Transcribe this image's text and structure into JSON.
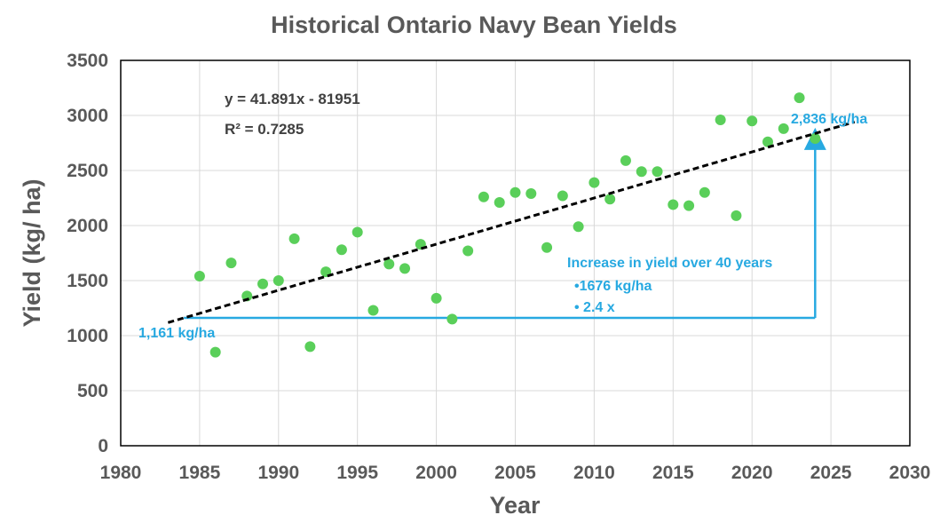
{
  "chart_data": {
    "type": "scatter",
    "title": "Historical Ontario Navy Bean Yields",
    "xlabel": "Year",
    "ylabel": "Yield (kg/ ha)",
    "xlim": [
      1980,
      2030
    ],
    "ylim": [
      0,
      3500
    ],
    "xticks": [
      "1980",
      "1985",
      "1990",
      "1995",
      "2000",
      "2005",
      "2010",
      "2015",
      "2020",
      "2025",
      "2030"
    ],
    "yticks": [
      "0",
      "500",
      "1000",
      "1500",
      "2000",
      "2500",
      "3000",
      "3500"
    ],
    "grid": true,
    "legend": "none",
    "series": [
      {
        "color": "#5ACF5A",
        "points": [
          {
            "x": 1985,
            "y": 1540
          },
          {
            "x": 1986,
            "y": 850
          },
          {
            "x": 1987,
            "y": 1660
          },
          {
            "x": 1988,
            "y": 1360
          },
          {
            "x": 1989,
            "y": 1470
          },
          {
            "x": 1990,
            "y": 1500
          },
          {
            "x": 1991,
            "y": 1880
          },
          {
            "x": 1992,
            "y": 900
          },
          {
            "x": 1993,
            "y": 1580
          },
          {
            "x": 1994,
            "y": 1780
          },
          {
            "x": 1995,
            "y": 1940
          },
          {
            "x": 1996,
            "y": 1230
          },
          {
            "x": 1997,
            "y": 1650
          },
          {
            "x": 1998,
            "y": 1610
          },
          {
            "x": 1999,
            "y": 1830
          },
          {
            "x": 2000,
            "y": 1340
          },
          {
            "x": 2001,
            "y": 1150
          },
          {
            "x": 2002,
            "y": 1770
          },
          {
            "x": 2003,
            "y": 2260
          },
          {
            "x": 2004,
            "y": 2210
          },
          {
            "x": 2005,
            "y": 2300
          },
          {
            "x": 2006,
            "y": 2290
          },
          {
            "x": 2007,
            "y": 1800
          },
          {
            "x": 2008,
            "y": 2270
          },
          {
            "x": 2009,
            "y": 1990
          },
          {
            "x": 2010,
            "y": 2390
          },
          {
            "x": 2011,
            "y": 2240
          },
          {
            "x": 2012,
            "y": 2590
          },
          {
            "x": 2013,
            "y": 2490
          },
          {
            "x": 2014,
            "y": 2490
          },
          {
            "x": 2015,
            "y": 2190
          },
          {
            "x": 2016,
            "y": 2180
          },
          {
            "x": 2017,
            "y": 2300
          },
          {
            "x": 2018,
            "y": 2960
          },
          {
            "x": 2019,
            "y": 2090
          },
          {
            "x": 2020,
            "y": 2950
          },
          {
            "x": 2021,
            "y": 2760
          },
          {
            "x": 2022,
            "y": 2880
          },
          {
            "x": 2023,
            "y": 3160
          },
          {
            "x": 2024,
            "y": 2790
          }
        ]
      }
    ],
    "trendline": {
      "type": "linear",
      "slope": 41.891,
      "intercept": -81951,
      "x_range": [
        1983,
        2026.5
      ],
      "color": "#000000",
      "equation_label": "y = 41.891x - 81951",
      "r2_label": "R² = 0.7285"
    },
    "annotations": {
      "color": "#27A9E1",
      "start_label": "1,161 kg/ha",
      "end_label": "2,836 kg/ha",
      "baseline": {
        "x_from": 1984,
        "x_to": 2024,
        "y": 1161
      },
      "arrow": {
        "x": 2024,
        "y_from": 1161,
        "y_to": 2836
      },
      "increase_title": "Increase in yield over 40 years",
      "increase_items": [
        "•1676 kg/ha",
        "• 2.4 x"
      ]
    }
  }
}
